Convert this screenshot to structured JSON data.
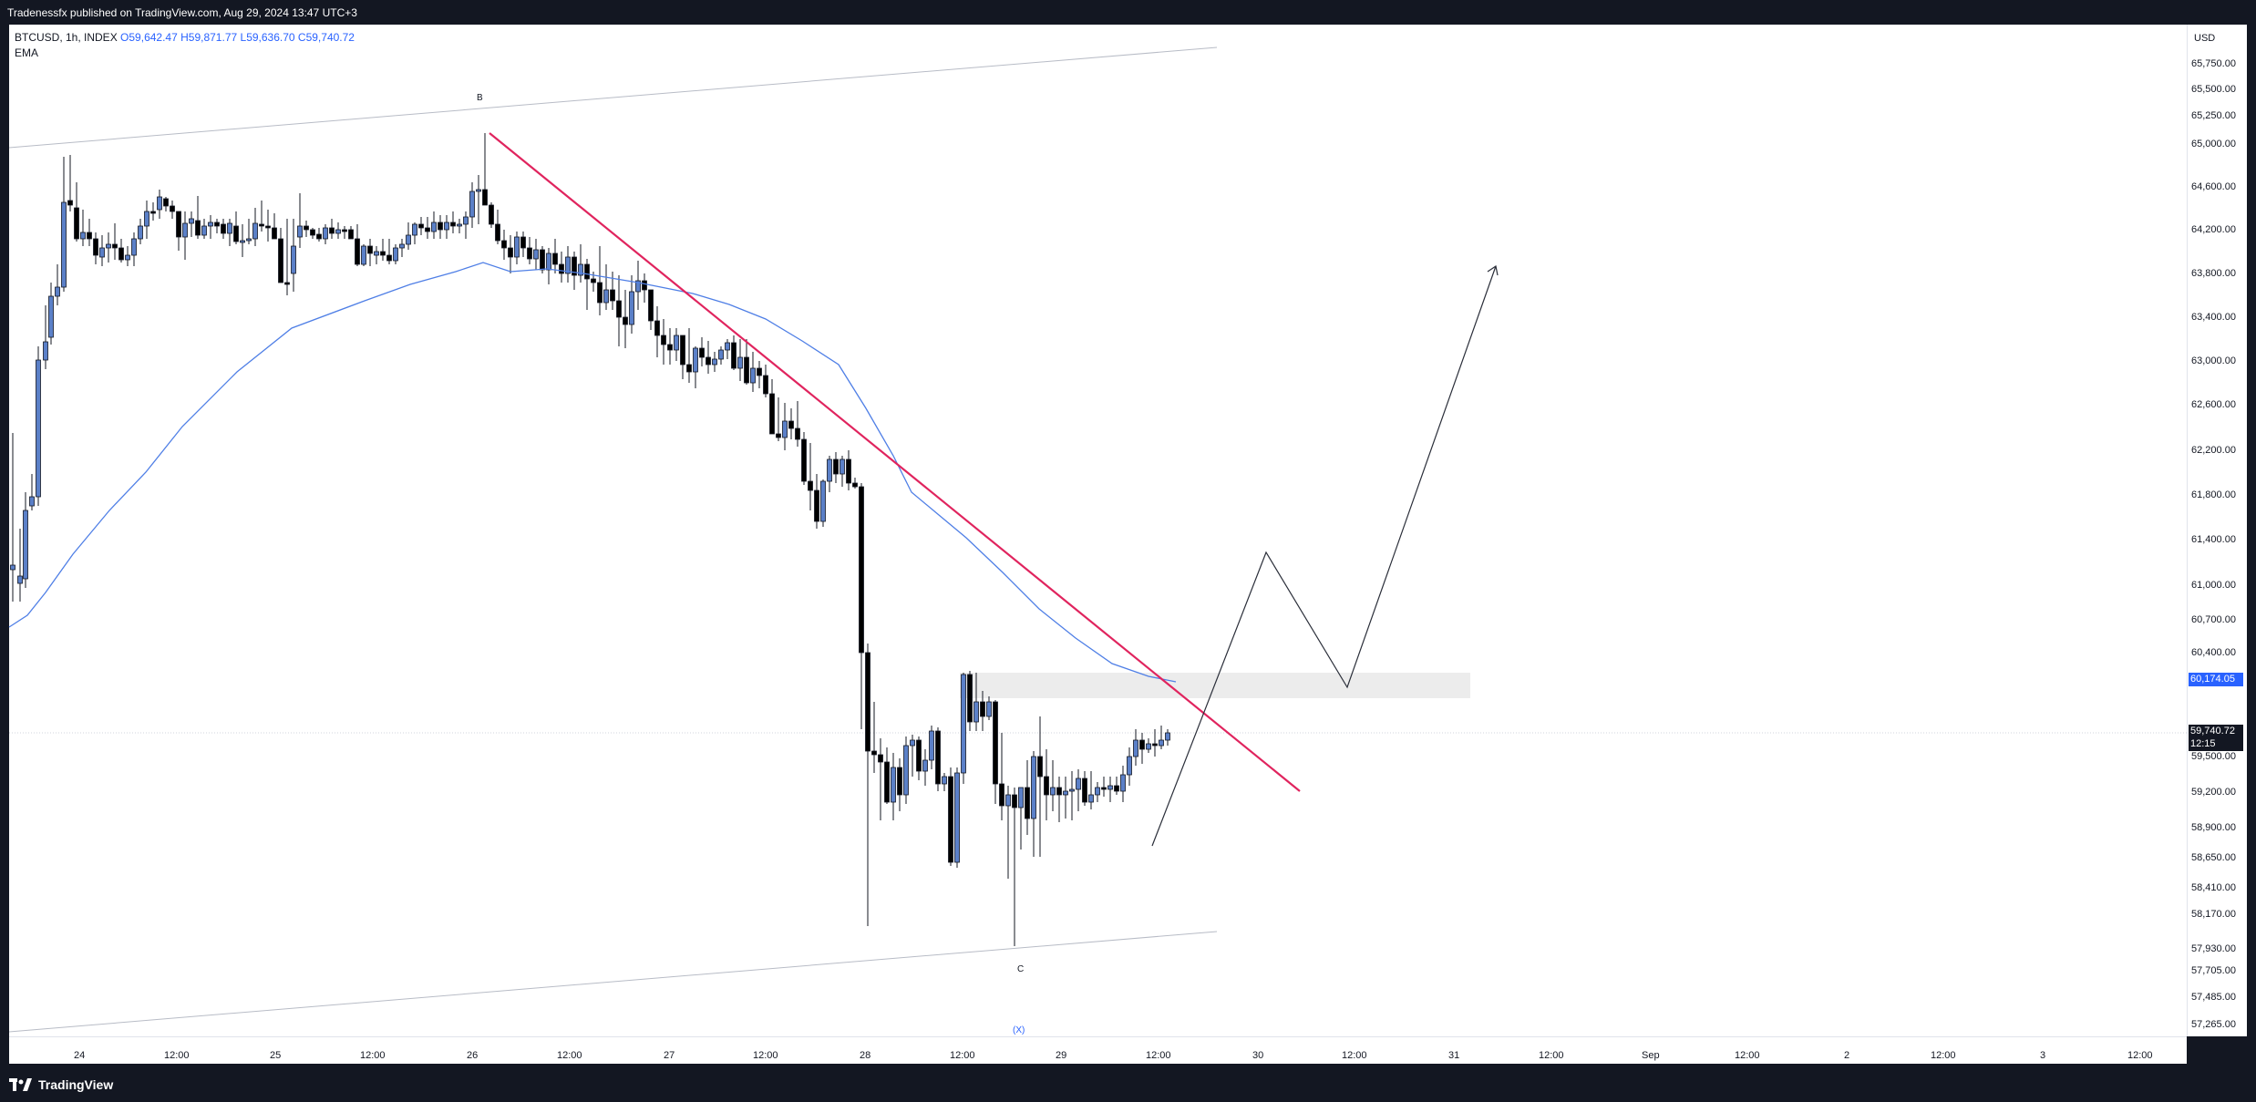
{
  "header": {
    "publish_text": "Tradenessfx published on TradingView.com, Aug 29, 2024 13:47 UTC+3"
  },
  "legend": {
    "symbol": "BTCUSD, 1h, INDEX",
    "open": "O59,642.47",
    "high": "H59,871.77",
    "low": "L59,636.70",
    "close": "C59,740.72",
    "indicator": "EMA"
  },
  "price_axis": {
    "currency": "USD",
    "ticks": [
      "65,750.00",
      "65,500.00",
      "65,250.00",
      "65,000.00",
      "64,600.00",
      "64,200.00",
      "63,800.00",
      "63,400.00",
      "63,000.00",
      "62,600.00",
      "62,200.00",
      "61,800.00",
      "61,400.00",
      "61,000.00",
      "60,700.00",
      "60,400.00",
      "59,500.00",
      "59,200.00",
      "58,900.00",
      "58,650.00",
      "58,410.00",
      "58,170.00",
      "57,930.00",
      "57,705.00",
      "57,485.00",
      "57,265.00"
    ],
    "label_ema": "60,174.05",
    "label_last": "59,740.72",
    "label_countdown": "12:15"
  },
  "time_axis": {
    "ticks": [
      "24",
      "12:00",
      "25",
      "12:00",
      "26",
      "12:00",
      "27",
      "12:00",
      "28",
      "12:00",
      "29",
      "12:00",
      "30",
      "12:00",
      "31",
      "12:00",
      "Sep",
      "12:00",
      "2",
      "12:00",
      "3",
      "12:00"
    ]
  },
  "annotations": {
    "wave_b": "B",
    "wave_c": "C",
    "wave_x": "(X)"
  },
  "colors": {
    "up_candle": "#5b80c8",
    "down_candle": "#000000",
    "ema": "#4f7fe6",
    "trendline": "#e0245e",
    "ema_label_bg": "#2962ff",
    "last_label_bg": "#131722"
  },
  "footer": {
    "brand": "TradingView"
  }
}
